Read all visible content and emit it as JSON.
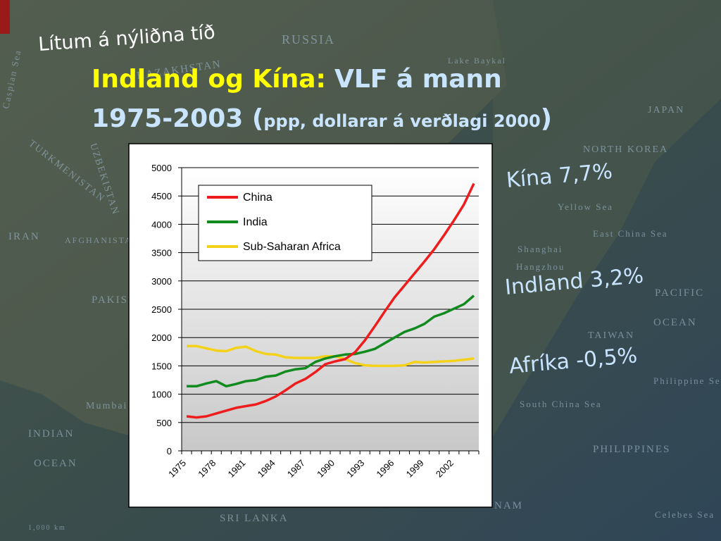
{
  "slide": {
    "heading": "Lítum á nýliðna tíð",
    "title_part1": "Indland og Kína:",
    "title_part2": "VLF á mann",
    "title_line2_start": "1975-2003 (",
    "title_line2_small": "ppp, dollarar á verðlagi 2000",
    "title_line2_end": ")",
    "notes": [
      "Kína 7,7%",
      "Indland 3,2%",
      "Afríka -0,5%"
    ],
    "map_labels": [
      "RUSSIA",
      "Lake Baykal",
      "KAZAKHSTAN",
      "UZBEKISTAN",
      "TURKMENISTAN",
      "Caspian Sea",
      "IRAN",
      "AFGHANISTAN",
      "PAKISTAN",
      "Mumbai",
      "INDIAN",
      "OCEAN",
      "SRI LANKA",
      "1,000 km",
      "JAPAN",
      "NORTH KOREA",
      "Yellow Sea",
      "East China Sea",
      "Shanghai",
      "Hangzhou",
      "PACIFIC",
      "OCEAN",
      "TAIWAN",
      "Philippine Sea",
      "South China Sea",
      "PHILIPPINES",
      "Celebes Sea",
      "NAM"
    ]
  },
  "chart_data": {
    "type": "line",
    "categories": [
      "1975",
      null,
      null,
      "1978",
      null,
      null,
      "1981",
      null,
      null,
      "1984",
      null,
      null,
      "1987",
      null,
      null,
      "1990",
      null,
      null,
      "1993",
      null,
      null,
      "1996",
      null,
      null,
      "1999",
      null,
      null,
      "2002",
      null,
      null
    ],
    "series": [
      {
        "name": "China",
        "color": "#ee1c1c",
        "values": [
          610,
          590,
          610,
          660,
          710,
          760,
          790,
          820,
          880,
          960,
          1070,
          1190,
          1270,
          1390,
          1530,
          1580,
          1620,
          1740,
          1950,
          2200,
          2460,
          2710,
          2920,
          3130,
          3340,
          3560,
          3810,
          4070,
          4350,
          4720
        ]
      },
      {
        "name": "India",
        "color": "#118a1e",
        "values": [
          1140,
          1140,
          1190,
          1230,
          1140,
          1180,
          1230,
          1250,
          1310,
          1330,
          1400,
          1440,
          1460,
          1570,
          1630,
          1670,
          1700,
          1710,
          1750,
          1800,
          1900,
          2000,
          2100,
          2160,
          2240,
          2370,
          2430,
          2510,
          2590,
          2740
        ]
      },
      {
        "name": "Sub-Saharan Africa",
        "color": "#f5d21a",
        "values": [
          1850,
          1850,
          1810,
          1770,
          1760,
          1820,
          1840,
          1760,
          1710,
          1700,
          1650,
          1640,
          1640,
          1640,
          1670,
          1670,
          1620,
          1550,
          1510,
          1500,
          1500,
          1500,
          1510,
          1570,
          1560,
          1570,
          1580,
          1590,
          1610,
          1630
        ]
      }
    ],
    "ylim": [
      0,
      5000
    ],
    "yticks": [
      0,
      500,
      1000,
      1500,
      2000,
      2500,
      3000,
      3500,
      4000,
      4500,
      5000
    ],
    "grid": true,
    "legend": "top-left"
  }
}
